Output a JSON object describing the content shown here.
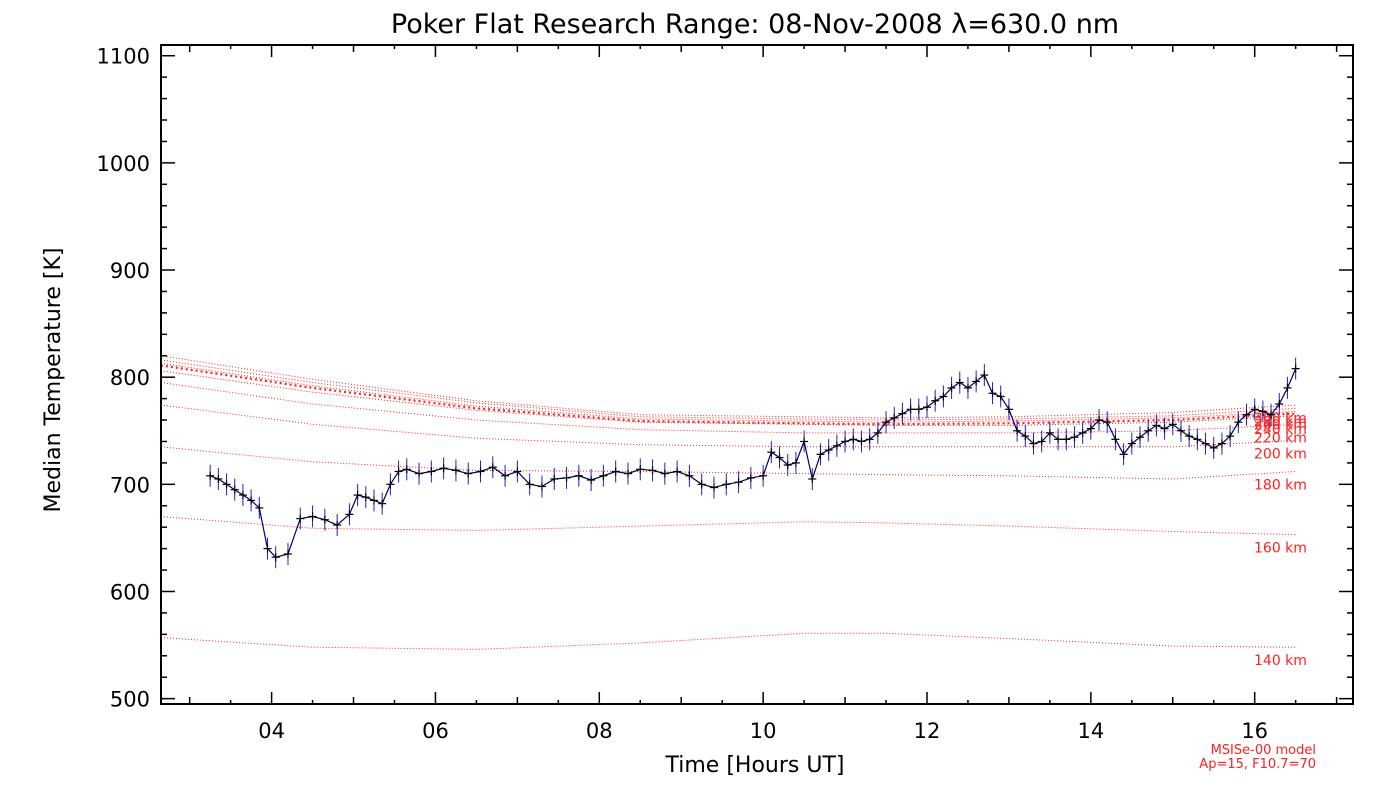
{
  "chart_data": {
    "type": "line",
    "title": "Poker Flat Research Range: 08-Nov-2008 λ=630.0 nm",
    "xlabel": "Time [Hours UT]",
    "ylabel": "Median Temperature [K]",
    "xlim": [
      2.65,
      17.2
    ],
    "ylim": [
      495,
      1110
    ],
    "x_ticks": [
      4,
      6,
      8,
      10,
      12,
      14,
      16
    ],
    "x_tick_labels": [
      "04",
      "06",
      "08",
      "10",
      "12",
      "14",
      "16"
    ],
    "y_ticks": [
      500,
      600,
      700,
      800,
      900,
      1000,
      1100
    ],
    "y_tick_labels": [
      "500",
      "600",
      "700",
      "800",
      "900",
      "1000",
      "1100"
    ],
    "grid": false,
    "model_note": [
      "MSISe-00 model",
      "Ap=15, F10.7=70"
    ],
    "colors": {
      "measurement_line": "#000066",
      "error_bars": "#2020d0",
      "markers": "#000000",
      "model": "#ff2020"
    },
    "series": [
      {
        "name": "measured",
        "x": [
          3.25,
          3.35,
          3.45,
          3.55,
          3.65,
          3.75,
          3.85,
          3.95,
          4.05,
          4.2,
          4.35,
          4.5,
          4.65,
          4.8,
          4.95,
          5.05,
          5.15,
          5.25,
          5.35,
          5.45,
          5.55,
          5.65,
          5.8,
          5.95,
          6.1,
          6.25,
          6.4,
          6.55,
          6.7,
          6.85,
          7.0,
          7.15,
          7.3,
          7.45,
          7.6,
          7.75,
          7.9,
          8.05,
          8.2,
          8.35,
          8.5,
          8.65,
          8.8,
          8.95,
          9.1,
          9.25,
          9.4,
          9.55,
          9.7,
          9.85,
          10.0,
          10.1,
          10.2,
          10.3,
          10.4,
          10.5,
          10.6,
          10.7,
          10.8,
          10.9,
          11.0,
          11.1,
          11.2,
          11.3,
          11.4,
          11.5,
          11.6,
          11.7,
          11.8,
          11.9,
          12.0,
          12.1,
          12.2,
          12.3,
          12.4,
          12.5,
          12.6,
          12.7,
          12.8,
          12.9,
          13.0,
          13.1,
          13.2,
          13.3,
          13.4,
          13.5,
          13.6,
          13.7,
          13.8,
          13.9,
          14.0,
          14.1,
          14.2,
          14.3,
          14.4,
          14.5,
          14.6,
          14.7,
          14.8,
          14.9,
          15.0,
          15.1,
          15.2,
          15.3,
          15.4,
          15.5,
          15.6,
          15.7,
          15.8,
          15.9,
          16.0,
          16.1,
          16.2,
          16.3,
          16.4,
          16.5
        ],
        "y": [
          708,
          705,
          700,
          695,
          690,
          685,
          678,
          640,
          632,
          635,
          668,
          670,
          667,
          662,
          672,
          690,
          688,
          685,
          682,
          700,
          712,
          714,
          710,
          712,
          715,
          713,
          710,
          712,
          716,
          708,
          712,
          700,
          698,
          705,
          706,
          708,
          704,
          708,
          712,
          710,
          714,
          713,
          710,
          712,
          708,
          700,
          697,
          700,
          702,
          706,
          708,
          730,
          725,
          718,
          720,
          740,
          705,
          728,
          732,
          736,
          740,
          742,
          740,
          742,
          748,
          758,
          762,
          766,
          770,
          770,
          772,
          778,
          782,
          790,
          795,
          790,
          796,
          802,
          785,
          782,
          770,
          750,
          745,
          738,
          740,
          748,
          742,
          742,
          744,
          748,
          752,
          760,
          758,
          742,
          728,
          738,
          744,
          750,
          755,
          752,
          756,
          750,
          745,
          742,
          738,
          734,
          738,
          745,
          758,
          765,
          770,
          768,
          765,
          775,
          790,
          808
        ]
      },
      {
        "name": "140 km",
        "x": [
          2.65,
          4.5,
          6.5,
          8.5,
          10.5,
          11.5,
          13.0,
          15.0,
          16.5
        ],
        "y": [
          557,
          548,
          546,
          552,
          561,
          561,
          556,
          549,
          548
        ]
      },
      {
        "name": "160 km",
        "x": [
          2.65,
          4.5,
          6.5,
          8.5,
          10.5,
          11.5,
          13.0,
          15.0,
          16.5
        ],
        "y": [
          670,
          659,
          657,
          661,
          665,
          664,
          661,
          656,
          653
        ]
      },
      {
        "name": "180 km",
        "x": [
          2.65,
          4.5,
          6.5,
          8.5,
          10.5,
          11.5,
          13.0,
          15.0,
          16.5
        ],
        "y": [
          735,
          721,
          713,
          712,
          710,
          709,
          708,
          705,
          712
        ]
      },
      {
        "name": "200 km",
        "x": [
          2.65,
          4.5,
          6.5,
          8.5,
          10.5,
          11.5,
          13.0,
          15.0,
          16.5
        ],
        "y": [
          774,
          756,
          743,
          737,
          735,
          735,
          735,
          735,
          741
        ]
      },
      {
        "name": "220 km",
        "x": [
          2.65,
          4.5,
          6.5,
          8.5,
          10.5,
          11.5,
          13.0,
          15.0,
          16.5
        ],
        "y": [
          795,
          775,
          760,
          751,
          748,
          748,
          748,
          750,
          756
        ]
      },
      {
        "name": "240 km",
        "x": [
          2.65,
          4.5,
          6.5,
          8.5,
          10.5,
          11.5,
          13.0,
          15.0,
          16.5
        ],
        "y": [
          806,
          786,
          769,
          758,
          756,
          755,
          755,
          758,
          764
        ]
      },
      {
        "name": "250 km",
        "x": [
          2.65,
          4.5,
          6.5,
          8.5,
          10.5,
          11.5,
          13.0,
          15.0,
          16.5
        ],
        "y": [
          811,
          790,
          771,
          759,
          757,
          756,
          757,
          760,
          766
        ]
      },
      {
        "name": "260 km",
        "x": [
          2.65,
          4.5,
          6.5,
          8.5,
          10.5,
          11.5,
          13.0,
          15.0,
          16.5
        ],
        "y": [
          813,
          792,
          773,
          761,
          759,
          758,
          759,
          762,
          768
        ]
      },
      {
        "name": "280 km",
        "x": [
          2.65,
          4.5,
          6.5,
          8.5,
          10.5,
          11.5,
          13.0,
          15.0,
          16.5
        ],
        "y": [
          816,
          795,
          776,
          763,
          761,
          760,
          761,
          764,
          771
        ]
      },
      {
        "name": "300 km",
        "x": [
          2.65,
          4.5,
          6.5,
          8.5,
          10.5,
          11.5,
          13.0,
          15.0,
          16.5
        ],
        "y": [
          820,
          798,
          778,
          765,
          763,
          762,
          763,
          767,
          774
        ]
      }
    ],
    "altitude_labels": [
      "140 km",
      "160 km",
      "180 km",
      "200 km",
      "220 km",
      "240 km",
      "260 km",
      "280 km",
      "300 km"
    ]
  }
}
